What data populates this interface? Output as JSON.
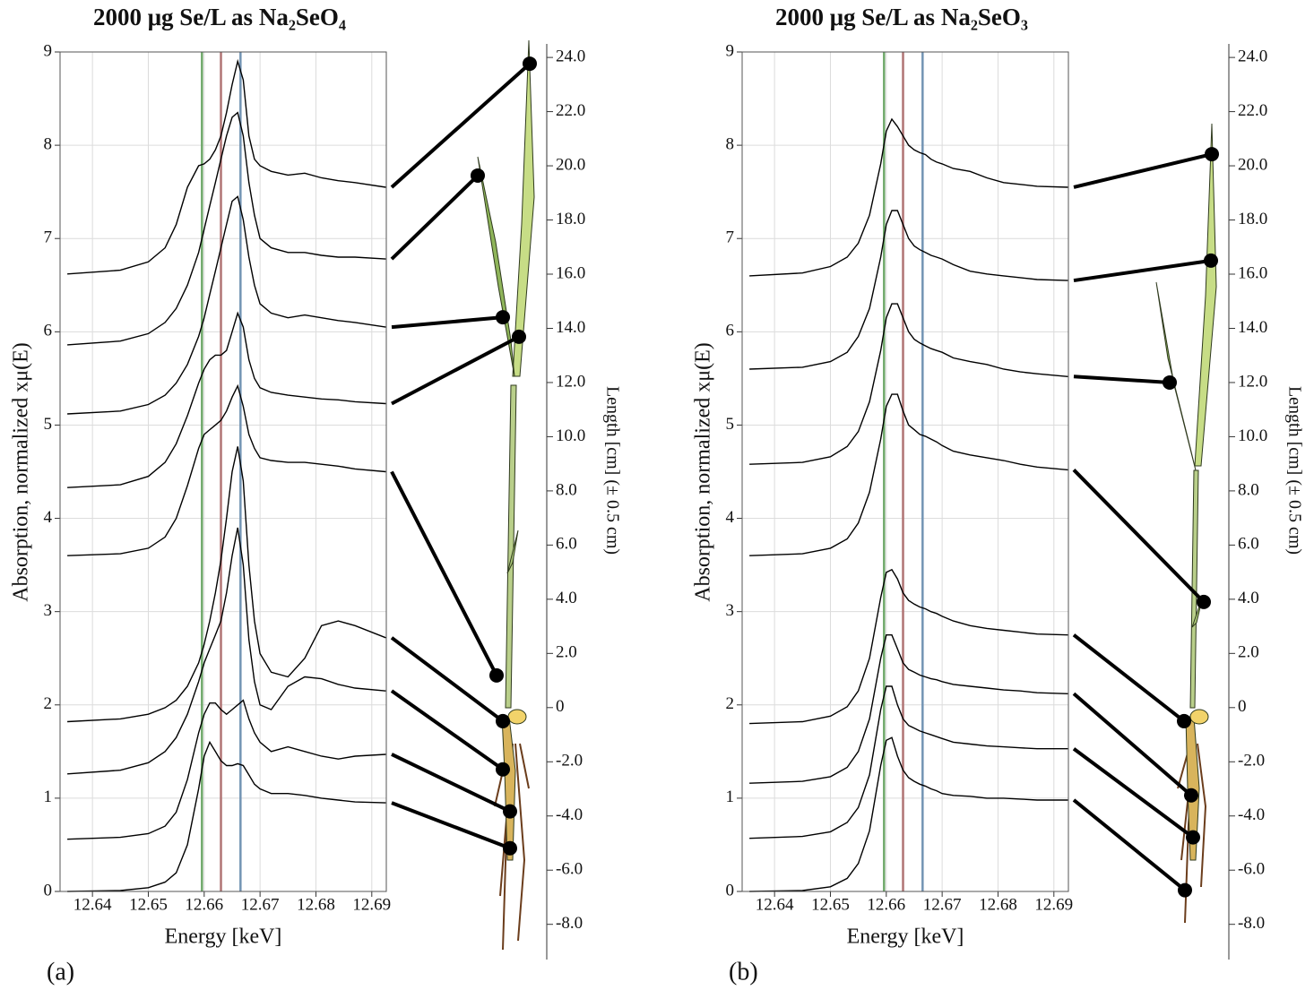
{
  "chart_data": [
    {
      "type": "line",
      "panel_label": "(a)",
      "title": "2000 μg Se/L as Na₂SeO₄",
      "x_label": "Energy [keV]",
      "y_label": "Absorption, normalized xμ(E)",
      "y2_label": "Length [cm] (± 0.5 cm)",
      "x": [
        12.6355,
        12.645,
        12.65,
        12.653,
        12.655,
        12.657,
        12.659,
        12.66,
        12.661,
        12.662,
        12.663,
        12.664,
        12.665,
        12.666,
        12.667,
        12.668,
        12.669,
        12.67,
        12.672,
        12.675,
        12.678,
        12.681,
        12.684,
        12.687,
        12.6925
      ],
      "xlim": [
        12.6342,
        12.6926
      ],
      "xticks": [
        12.64,
        12.65,
        12.66,
        12.67,
        12.68,
        12.69
      ],
      "ylim": [
        0,
        9
      ],
      "yticks": [
        0,
        1,
        2,
        3,
        4,
        5,
        6,
        7,
        8,
        9
      ],
      "grid": true,
      "vlines": [
        {
          "x": 12.6596,
          "color": "#6fa86a"
        },
        {
          "x": 12.663,
          "color": "#b07474"
        },
        {
          "x": 12.6665,
          "color": "#7394b4"
        }
      ],
      "series": [
        {
          "color": "#000000",
          "values": [
            6.62,
            6.66,
            6.75,
            6.9,
            7.15,
            7.55,
            7.78,
            7.8,
            7.85,
            7.95,
            8.1,
            8.35,
            8.65,
            8.9,
            8.7,
            8.1,
            7.85,
            7.78,
            7.72,
            7.68,
            7.7,
            7.65,
            7.62,
            7.6,
            7.55
          ]
        },
        {
          "color": "#000000",
          "values": [
            5.86,
            5.9,
            5.98,
            6.1,
            6.25,
            6.5,
            6.85,
            7.1,
            7.35,
            7.6,
            7.85,
            8.1,
            8.3,
            8.35,
            8.1,
            7.6,
            7.25,
            7.0,
            6.9,
            6.85,
            6.85,
            6.82,
            6.8,
            6.8,
            6.78
          ]
        },
        {
          "color": "#000000",
          "values": [
            5.12,
            5.15,
            5.22,
            5.32,
            5.45,
            5.65,
            5.95,
            6.15,
            6.4,
            6.65,
            6.9,
            7.15,
            7.4,
            7.45,
            7.2,
            6.8,
            6.5,
            6.3,
            6.2,
            6.15,
            6.18,
            6.15,
            6.12,
            6.1,
            6.05
          ]
        },
        {
          "color": "#000000",
          "values": [
            4.33,
            4.36,
            4.45,
            4.6,
            4.8,
            5.1,
            5.45,
            5.6,
            5.7,
            5.75,
            5.75,
            5.8,
            6.0,
            6.2,
            6.05,
            5.7,
            5.5,
            5.4,
            5.35,
            5.32,
            5.3,
            5.28,
            5.27,
            5.25,
            5.23
          ]
        },
        {
          "color": "#000000",
          "values": [
            3.6,
            3.62,
            3.68,
            3.8,
            4.0,
            4.35,
            4.75,
            4.9,
            4.95,
            5.0,
            5.05,
            5.15,
            5.3,
            5.42,
            5.2,
            4.9,
            4.75,
            4.65,
            4.62,
            4.6,
            4.6,
            4.58,
            4.56,
            4.53,
            4.5
          ]
        },
        {
          "color": "#000000",
          "values": [
            1.82,
            1.85,
            1.9,
            1.97,
            2.05,
            2.2,
            2.45,
            2.65,
            2.9,
            3.2,
            3.55,
            4.0,
            4.5,
            4.77,
            4.4,
            3.5,
            2.9,
            2.55,
            2.35,
            2.3,
            2.5,
            2.85,
            2.9,
            2.85,
            2.72
          ]
        },
        {
          "color": "#000000",
          "values": [
            1.26,
            1.3,
            1.38,
            1.5,
            1.65,
            1.9,
            2.25,
            2.45,
            2.6,
            2.75,
            2.9,
            3.2,
            3.6,
            3.9,
            3.5,
            2.7,
            2.25,
            2.0,
            1.95,
            2.2,
            2.3,
            2.28,
            2.22,
            2.18,
            2.15
          ]
        },
        {
          "color": "#000000",
          "values": [
            0.56,
            0.58,
            0.62,
            0.7,
            0.85,
            1.2,
            1.7,
            1.9,
            2.02,
            2.02,
            1.95,
            1.9,
            1.95,
            2.0,
            2.05,
            1.85,
            1.7,
            1.6,
            1.5,
            1.55,
            1.5,
            1.45,
            1.42,
            1.45,
            1.47
          ]
        },
        {
          "color": "#000000",
          "values": [
            0.0,
            0.01,
            0.04,
            0.1,
            0.2,
            0.5,
            1.1,
            1.45,
            1.6,
            1.5,
            1.4,
            1.35,
            1.35,
            1.37,
            1.35,
            1.25,
            1.15,
            1.1,
            1.05,
            1.05,
            1.03,
            1.0,
            0.98,
            0.96,
            0.95
          ]
        }
      ],
      "y2lim": [
        -9.3,
        24.5
      ],
      "y2ticks": [
        {
          "value": 24,
          "label": "24.0"
        },
        {
          "value": 22,
          "label": "22.0"
        },
        {
          "value": 20,
          "label": "20.0"
        },
        {
          "value": 18,
          "label": "18.0"
        },
        {
          "value": 16,
          "label": "16.0"
        },
        {
          "value": 14,
          "label": "14.0"
        },
        {
          "value": 12,
          "label": "12.0"
        },
        {
          "value": 10,
          "label": "10.0"
        },
        {
          "value": 8,
          "label": "8.0"
        },
        {
          "value": 6,
          "label": "6.0"
        },
        {
          "value": 4,
          "label": "4.0"
        },
        {
          "value": 2,
          "label": "2.0"
        },
        0,
        {
          "value": -2,
          "label": "-2.0"
        },
        {
          "value": -4,
          "label": "-4.0"
        },
        {
          "value": -6,
          "label": "-6.0"
        },
        {
          "value": -8,
          "label": "-8.0"
        }
      ],
      "sample_lengths": [
        23.77,
        19.64,
        14.41,
        13.69,
        1.19,
        -0.5,
        -2.28,
        -3.83,
        -5.19
      ]
    },
    {
      "type": "line",
      "panel_label": "(b)",
      "title": "2000 μg Se/L as Na₂SeO₃",
      "x_label": "Energy [keV]",
      "y_label": "Absorption, normalized xμ(E)",
      "y2_label": "Length [cm] (± 0.5 cm)",
      "x": [
        12.6355,
        12.645,
        12.65,
        12.653,
        12.655,
        12.657,
        12.659,
        12.66,
        12.661,
        12.662,
        12.663,
        12.664,
        12.665,
        12.666,
        12.667,
        12.668,
        12.669,
        12.67,
        12.672,
        12.675,
        12.678,
        12.681,
        12.684,
        12.687,
        12.6925
      ],
      "xlim": [
        12.6342,
        12.6926
      ],
      "xticks": [
        12.64,
        12.65,
        12.66,
        12.67,
        12.68,
        12.69
      ],
      "ylim": [
        0,
        9
      ],
      "yticks": [
        0,
        1,
        2,
        3,
        4,
        5,
        6,
        7,
        8,
        9
      ],
      "grid": true,
      "vlines": [
        {
          "x": 12.6596,
          "color": "#6fa86a"
        },
        {
          "x": 12.663,
          "color": "#b07474"
        },
        {
          "x": 12.6665,
          "color": "#7394b4"
        }
      ],
      "series": [
        {
          "color": "#000000",
          "values": [
            6.6,
            6.63,
            6.7,
            6.8,
            6.95,
            7.25,
            7.8,
            8.15,
            8.28,
            8.2,
            8.1,
            8.0,
            7.95,
            7.92,
            7.9,
            7.85,
            7.82,
            7.8,
            7.75,
            7.72,
            7.65,
            7.6,
            7.58,
            7.56,
            7.55
          ]
        },
        {
          "color": "#000000",
          "values": [
            5.6,
            5.62,
            5.68,
            5.78,
            5.95,
            6.25,
            6.8,
            7.15,
            7.3,
            7.3,
            7.15,
            7.0,
            6.92,
            6.88,
            6.85,
            6.82,
            6.8,
            6.78,
            6.72,
            6.65,
            6.62,
            6.6,
            6.58,
            6.56,
            6.55
          ]
        },
        {
          "color": "#000000",
          "values": [
            4.58,
            4.6,
            4.66,
            4.77,
            4.93,
            5.25,
            5.8,
            6.15,
            6.3,
            6.3,
            6.15,
            6.0,
            5.92,
            5.88,
            5.85,
            5.82,
            5.8,
            5.78,
            5.72,
            5.68,
            5.65,
            5.6,
            5.57,
            5.55,
            5.52
          ]
        },
        {
          "color": "#000000",
          "values": [
            3.6,
            3.62,
            3.68,
            3.78,
            3.95,
            4.28,
            4.85,
            5.2,
            5.33,
            5.33,
            5.15,
            5.0,
            4.95,
            4.9,
            4.88,
            4.85,
            4.82,
            4.78,
            4.72,
            4.68,
            4.65,
            4.62,
            4.58,
            4.55,
            4.52
          ]
        },
        {
          "color": "#000000",
          "values": [
            1.8,
            1.82,
            1.88,
            1.98,
            2.15,
            2.5,
            3.15,
            3.42,
            3.45,
            3.35,
            3.2,
            3.12,
            3.08,
            3.05,
            3.03,
            3.0,
            2.98,
            2.95,
            2.9,
            2.85,
            2.82,
            2.8,
            2.78,
            2.76,
            2.75
          ]
        },
        {
          "color": "#000000",
          "values": [
            1.16,
            1.18,
            1.23,
            1.33,
            1.5,
            1.85,
            2.5,
            2.75,
            2.75,
            2.6,
            2.45,
            2.38,
            2.35,
            2.32,
            2.3,
            2.28,
            2.27,
            2.25,
            2.22,
            2.2,
            2.18,
            2.16,
            2.15,
            2.13,
            2.12
          ]
        },
        {
          "color": "#000000",
          "values": [
            0.57,
            0.59,
            0.64,
            0.74,
            0.9,
            1.25,
            1.95,
            2.2,
            2.2,
            2.0,
            1.85,
            1.78,
            1.75,
            1.72,
            1.7,
            1.68,
            1.66,
            1.64,
            1.6,
            1.58,
            1.56,
            1.55,
            1.54,
            1.53,
            1.53
          ]
        },
        {
          "color": "#000000",
          "values": [
            0.0,
            0.01,
            0.05,
            0.14,
            0.3,
            0.65,
            1.35,
            1.62,
            1.65,
            1.45,
            1.3,
            1.22,
            1.18,
            1.15,
            1.13,
            1.1,
            1.08,
            1.05,
            1.03,
            1.02,
            1.0,
            1.0,
            0.99,
            0.98,
            0.98
          ]
        }
      ],
      "y2lim": [
        -9.3,
        24.5
      ],
      "y2ticks": [
        {
          "value": 24,
          "label": "24.0"
        },
        {
          "value": 22,
          "label": "22.0"
        },
        {
          "value": 20,
          "label": "20.0"
        },
        {
          "value": 18,
          "label": "18.0"
        },
        {
          "value": 16,
          "label": "16.0"
        },
        {
          "value": 14,
          "label": "14.0"
        },
        {
          "value": 12,
          "label": "12.0"
        },
        {
          "value": 10,
          "label": "10.0"
        },
        {
          "value": 8,
          "label": "8.0"
        },
        {
          "value": 6,
          "label": "6.0"
        },
        {
          "value": 4,
          "label": "4.0"
        },
        {
          "value": 2,
          "label": "2.0"
        },
        0,
        {
          "value": -2,
          "label": "-2.0"
        },
        {
          "value": -4,
          "label": "-4.0"
        },
        {
          "value": -6,
          "label": "-6.0"
        },
        {
          "value": -8,
          "label": "-8.0"
        }
      ],
      "sample_lengths": [
        20.43,
        16.5,
        12.0,
        3.9,
        -0.5,
        -3.24,
        -4.79,
        -6.74
      ]
    }
  ]
}
